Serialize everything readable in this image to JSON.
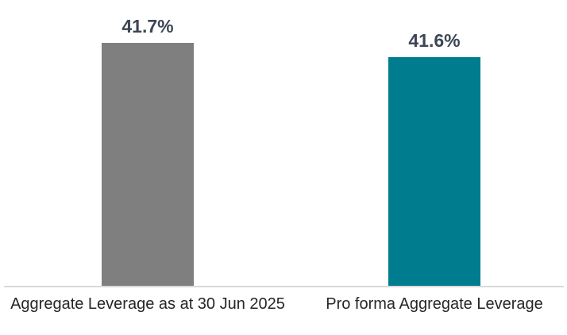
{
  "chart_data": {
    "type": "bar",
    "title": "",
    "xlabel": "",
    "ylabel": "",
    "categories": [
      "Aggregate Leverage as at 30 Jun 2025",
      "Pro forma Aggregate Leverage"
    ],
    "values": [
      41.7,
      41.6
    ],
    "data_labels": [
      "41.7%",
      "41.6%"
    ],
    "bar_colors": [
      "#7f7f7f",
      "#007c8f"
    ],
    "ylim": [
      40,
      42
    ],
    "grid": false,
    "y_axis_visible": false,
    "x_axis_line_visible": true,
    "legend": "none",
    "axis_line_color": "#d9d9d9",
    "value_label_color": "#3d4653",
    "category_label_color": "#262626",
    "background_color": "#ffffff"
  }
}
